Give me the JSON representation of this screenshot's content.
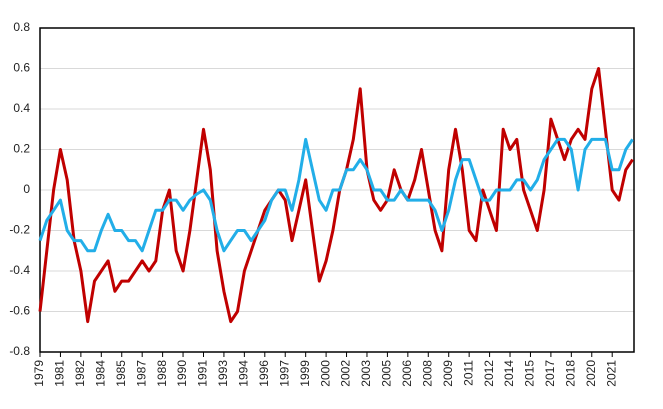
{
  "chart_data": {
    "type": "line",
    "x": [
      1979,
      1979.5,
      1980,
      1980.5,
      1981,
      1981.5,
      1982,
      1982.5,
      1983,
      1983.5,
      1984,
      1984.5,
      1985,
      1985.5,
      1986,
      1986.5,
      1987,
      1987.5,
      1988,
      1988.5,
      1989,
      1989.5,
      1990,
      1990.5,
      1991,
      1991.5,
      1992,
      1992.5,
      1993,
      1993.5,
      1994,
      1994.5,
      1995,
      1995.5,
      1996,
      1996.5,
      1997,
      1997.5,
      1998,
      1998.5,
      1999,
      1999.5,
      2000,
      2000.5,
      2001,
      2001.5,
      2002,
      2002.5,
      2003,
      2003.5,
      2004,
      2004.5,
      2005,
      2005.5,
      2006,
      2006.5,
      2007,
      2007.5,
      2008,
      2008.5,
      2009,
      2009.5,
      2010,
      2010.5,
      2011,
      2011.5,
      2012,
      2012.5,
      2013,
      2013.5,
      2014,
      2014.5,
      2015,
      2015.5,
      2016,
      2016.5,
      2017,
      2017.5,
      2018,
      2018.5,
      2019,
      2019.5,
      2020,
      2020.5,
      2021,
      2021.5,
      2022,
      2022.5
    ],
    "series": [
      {
        "color": "#c00000",
        "values": [
          -0.6,
          -0.3,
          0.0,
          0.2,
          0.05,
          -0.25,
          -0.4,
          -0.65,
          -0.45,
          -0.4,
          -0.35,
          -0.5,
          -0.45,
          -0.45,
          -0.4,
          -0.35,
          -0.4,
          -0.35,
          -0.1,
          0.0,
          -0.3,
          -0.4,
          -0.2,
          0.05,
          0.3,
          0.1,
          -0.3,
          -0.5,
          -0.65,
          -0.6,
          -0.4,
          -0.3,
          -0.2,
          -0.1,
          -0.05,
          0.0,
          -0.05,
          -0.25,
          -0.1,
          0.05,
          -0.2,
          -0.45,
          -0.35,
          -0.2,
          0.0,
          0.1,
          0.25,
          0.5,
          0.1,
          -0.05,
          -0.1,
          -0.05,
          0.1,
          0.0,
          -0.05,
          0.05,
          0.2,
          0.0,
          -0.2,
          -0.3,
          0.1,
          0.3,
          0.1,
          -0.2,
          -0.25,
          0.0,
          -0.1,
          -0.2,
          0.3,
          0.2,
          0.25,
          0.0,
          -0.1,
          -0.2,
          0.0,
          0.35,
          0.25,
          0.15,
          0.25,
          0.3,
          0.25,
          0.5,
          0.6,
          0.3,
          0.0,
          -0.05,
          0.1,
          0.15
        ]
      },
      {
        "color": "#22aee8",
        "values": [
          -0.25,
          -0.15,
          -0.1,
          -0.05,
          -0.2,
          -0.25,
          -0.25,
          -0.3,
          -0.3,
          -0.2,
          -0.12,
          -0.2,
          -0.2,
          -0.25,
          -0.25,
          -0.3,
          -0.2,
          -0.1,
          -0.1,
          -0.05,
          -0.05,
          -0.1,
          -0.05,
          -0.02,
          0.0,
          -0.05,
          -0.2,
          -0.3,
          -0.25,
          -0.2,
          -0.2,
          -0.25,
          -0.2,
          -0.15,
          -0.05,
          0.0,
          0.0,
          -0.1,
          0.05,
          0.25,
          0.1,
          -0.05,
          -0.1,
          0.0,
          0.0,
          0.1,
          0.1,
          0.15,
          0.1,
          0.0,
          0.0,
          -0.05,
          -0.05,
          0.0,
          -0.05,
          -0.05,
          -0.05,
          -0.05,
          -0.1,
          -0.2,
          -0.1,
          0.05,
          0.15,
          0.15,
          0.05,
          -0.05,
          -0.05,
          0.0,
          0.0,
          0.0,
          0.05,
          0.05,
          0.0,
          0.05,
          0.15,
          0.2,
          0.25,
          0.25,
          0.2,
          0.0,
          0.2,
          0.25,
          0.25,
          0.25,
          0.1,
          0.1,
          0.2,
          0.25
        ]
      }
    ],
    "xlim": [
      1979,
      2022.6
    ],
    "xticks": [
      1979,
      {
        "value": 1980.5,
        "label": "1981"
      },
      1982,
      {
        "value": 1983.5,
        "label": "1984"
      },
      1985,
      {
        "value": 1986.5,
        "label": "1987"
      },
      1988,
      {
        "value": 1989.5,
        "label": "1990"
      },
      1991,
      {
        "value": 1992.5,
        "label": "1993"
      },
      1994,
      {
        "value": 1995.5,
        "label": "1996"
      },
      1997,
      {
        "value": 1998.5,
        "label": "1999"
      },
      2000,
      {
        "value": 2001.5,
        "label": "2002"
      },
      2003,
      {
        "value": 2004.5,
        "label": "2005"
      },
      2006,
      {
        "value": 2007.5,
        "label": "2008"
      },
      2009,
      {
        "value": 2010.5,
        "label": "2011"
      },
      2012,
      {
        "value": 2013.5,
        "label": "2014"
      },
      2015,
      {
        "value": 2016.5,
        "label": "2017"
      },
      2018,
      {
        "value": 2019.5,
        "label": "2020"
      },
      2021
    ],
    "ylim": [
      -0.8,
      0.8
    ],
    "yticks": [
      -0.8,
      -0.6,
      -0.4,
      -0.2,
      0,
      0.2,
      0.4,
      0.6,
      0.8
    ],
    "grid": true
  }
}
